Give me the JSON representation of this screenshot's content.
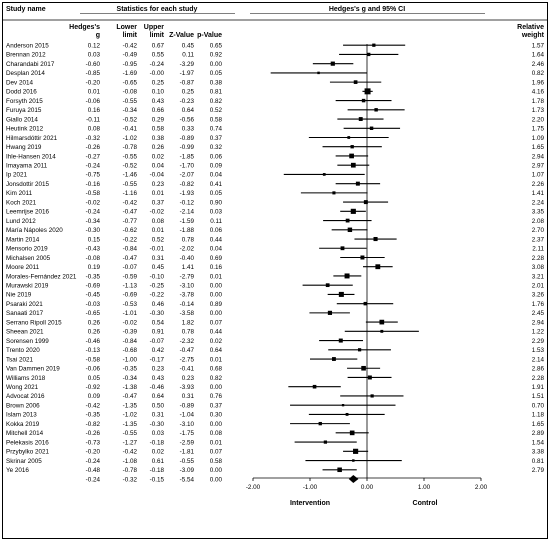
{
  "header": {
    "study_name": "Study name",
    "stats_title": "Statistics for each study",
    "col_g": [
      "Hedges's",
      "g"
    ],
    "col_lower": [
      "Lower",
      "limit"
    ],
    "col_upper": [
      "Upper",
      "limit"
    ],
    "col_z": "Z-Value",
    "col_p": "p-Value",
    "forest_title": "Hedges's g and 95% CI",
    "col_weight": [
      "Relative",
      "weight"
    ]
  },
  "chart_data": {
    "type": "forest",
    "x_ticks": [
      "-2.00",
      "-1.00",
      "0.00",
      "1.00",
      "2.00"
    ],
    "x_tick_values": [
      -2,
      -1,
      0,
      1,
      2
    ],
    "xlim": [
      -2,
      2
    ],
    "xlabel_left": "Intervention",
    "xlabel_right": "Control",
    "studies": [
      {
        "name": "Anderson 2015",
        "g": "0.12",
        "lower": "-0.42",
        "upper": "0.67",
        "z": "0.45",
        "p": "0.65",
        "weight": "1.57"
      },
      {
        "name": "Brennan 2012",
        "g": "0.03",
        "lower": "-0.49",
        "upper": "0.55",
        "z": "0.11",
        "p": "0.92",
        "weight": "1.64"
      },
      {
        "name": "Charandabi 2017",
        "g": "-0.60",
        "lower": "-0.95",
        "upper": "-0.24",
        "z": "-3.29",
        "p": "0.00",
        "weight": "2.46"
      },
      {
        "name": "Desplan 2014",
        "g": "-0.85",
        "lower": "-1.69",
        "upper": "-0.00",
        "z": "-1.97",
        "p": "0.05",
        "weight": "0.82"
      },
      {
        "name": "Dev 2014",
        "g": "-0.20",
        "lower": "-0.65",
        "upper": "0.25",
        "z": "-0.87",
        "p": "0.38",
        "weight": "1.96"
      },
      {
        "name": "Dodd 2016",
        "g": "0.01",
        "lower": "-0.08",
        "upper": "0.10",
        "z": "0.25",
        "p": "0.81",
        "weight": "4.16"
      },
      {
        "name": "Forsyth 2015",
        "g": "-0.06",
        "lower": "-0.55",
        "upper": "0.43",
        "z": "-0.23",
        "p": "0.82",
        "weight": "1.78"
      },
      {
        "name": "Furuya 2015",
        "g": "0.16",
        "lower": "-0.34",
        "upper": "0.66",
        "z": "0.64",
        "p": "0.52",
        "weight": "1.73"
      },
      {
        "name": "Giallo 2014",
        "g": "-0.11",
        "lower": "-0.52",
        "upper": "0.29",
        "z": "-0.56",
        "p": "0.58",
        "weight": "2.20"
      },
      {
        "name": "Heutink 2012",
        "g": "0.08",
        "lower": "-0.41",
        "upper": "0.58",
        "z": "0.33",
        "p": "0.74",
        "weight": "1.75"
      },
      {
        "name": "Hilmarsdóttir 2021",
        "g": "-0.32",
        "lower": "-1.02",
        "upper": "0.38",
        "z": "-0.89",
        "p": "0.37",
        "weight": "1.09"
      },
      {
        "name": "Hwang 2019",
        "g": "-0.26",
        "lower": "-0.78",
        "upper": "0.26",
        "z": "-0.99",
        "p": "0.32",
        "weight": "1.65"
      },
      {
        "name": "Ihle-Hansen 2014",
        "g": "-0.27",
        "lower": "-0.55",
        "upper": "0.02",
        "z": "-1.85",
        "p": "0.06",
        "weight": "2.94"
      },
      {
        "name": "Imayama 2011",
        "g": "-0.24",
        "lower": "-0.52",
        "upper": "0.04",
        "z": "-1.70",
        "p": "0.09",
        "weight": "2.97"
      },
      {
        "name": "Ip 2021",
        "g": "-0.75",
        "lower": "-1.46",
        "upper": "-0.04",
        "z": "-2.07",
        "p": "0.04",
        "weight": "1.07"
      },
      {
        "name": "Jonsdottir 2015",
        "g": "-0.16",
        "lower": "-0.55",
        "upper": "0.23",
        "z": "-0.82",
        "p": "0.41",
        "weight": "2.26"
      },
      {
        "name": "Kim 2011",
        "g": "-0.58",
        "lower": "-1.16",
        "upper": "0.01",
        "z": "-1.93",
        "p": "0.05",
        "weight": "1.41"
      },
      {
        "name": "Koch 2021",
        "g": "-0.02",
        "lower": "-0.42",
        "upper": "0.37",
        "z": "-0.12",
        "p": "0.90",
        "weight": "2.24"
      },
      {
        "name": "Leemrijse 2016",
        "g": "-0.24",
        "lower": "-0.47",
        "upper": "-0.02",
        "z": "-2.14",
        "p": "0.03",
        "weight": "3.35"
      },
      {
        "name": "Lund 2012",
        "g": "-0.34",
        "lower": "-0.77",
        "upper": "0.08",
        "z": "-1.59",
        "p": "0.11",
        "weight": "2.08"
      },
      {
        "name": "María Nápoles 2020",
        "g": "-0.30",
        "lower": "-0.62",
        "upper": "0.01",
        "z": "-1.88",
        "p": "0.06",
        "weight": "2.70"
      },
      {
        "name": "Martin 2014",
        "g": "0.15",
        "lower": "-0.22",
        "upper": "0.52",
        "z": "0.78",
        "p": "0.44",
        "weight": "2.37"
      },
      {
        "name": "Mensorio 2019",
        "g": "-0.43",
        "lower": "-0.84",
        "upper": "-0.01",
        "z": "-2.02",
        "p": "0.04",
        "weight": "2.11"
      },
      {
        "name": "Michalsen 2005",
        "g": "-0.08",
        "lower": "-0.47",
        "upper": "0.31",
        "z": "-0.40",
        "p": "0.69",
        "weight": "2.28"
      },
      {
        "name": "Moore 2011",
        "g": "0.19",
        "lower": "-0.07",
        "upper": "0.45",
        "z": "1.41",
        "p": "0.16",
        "weight": "3.08"
      },
      {
        "name": "Morales-Fernández 2021",
        "g": "-0.35",
        "lower": "-0.59",
        "upper": "-0.10",
        "z": "-2.79",
        "p": "0.01",
        "weight": "3.21"
      },
      {
        "name": "Murawski 2019",
        "g": "-0.69",
        "lower": "-1.13",
        "upper": "-0.25",
        "z": "-3.10",
        "p": "0.00",
        "weight": "2.01"
      },
      {
        "name": "Nie 2019",
        "g": "-0.45",
        "lower": "-0.69",
        "upper": "-0.22",
        "z": "-3.78",
        "p": "0.00",
        "weight": "3.26"
      },
      {
        "name": "Psaraki 2021",
        "g": "-0.03",
        "lower": "-0.53",
        "upper": "0.46",
        "z": "-0.14",
        "p": "0.89",
        "weight": "1.76"
      },
      {
        "name": "Sanaati 2017",
        "g": "-0.65",
        "lower": "-1.01",
        "upper": "-0.30",
        "z": "-3.58",
        "p": "0.00",
        "weight": "2.45"
      },
      {
        "name": "Serrano Ripoll 2015",
        "g": "0.26",
        "lower": "-0.02",
        "upper": "0.54",
        "z": "1.82",
        "p": "0.07",
        "weight": "2.94"
      },
      {
        "name": "Sheean 2021",
        "g": "0.26",
        "lower": "-0.39",
        "upper": "0.91",
        "z": "0.78",
        "p": "0.44",
        "weight": "1.22"
      },
      {
        "name": "Sorensen 1999",
        "g": "-0.46",
        "lower": "-0.84",
        "upper": "-0.07",
        "z": "-2.32",
        "p": "0.02",
        "weight": "2.29"
      },
      {
        "name": "Trento 2020",
        "g": "-0.13",
        "lower": "-0.68",
        "upper": "0.42",
        "z": "-0.47",
        "p": "0.64",
        "weight": "1.53"
      },
      {
        "name": "Tsai 2021",
        "g": "-0.58",
        "lower": "-1.00",
        "upper": "-0.17",
        "z": "-2.75",
        "p": "0.01",
        "weight": "2.14"
      },
      {
        "name": "Van Dammen 2019",
        "g": "-0.06",
        "lower": "-0.35",
        "upper": "0.23",
        "z": "-0.41",
        "p": "0.68",
        "weight": "2.86"
      },
      {
        "name": "Williams 2018",
        "g": "0.05",
        "lower": "-0.34",
        "upper": "0.43",
        "z": "0.23",
        "p": "0.82",
        "weight": "2.28"
      },
      {
        "name": "Wong 2021",
        "g": "-0.92",
        "lower": "-1.38",
        "upper": "-0.46",
        "z": "-3.93",
        "p": "0.00",
        "weight": "1.91"
      },
      {
        "name": "Advocat 2016",
        "g": "0.09",
        "lower": "-0.47",
        "upper": "0.64",
        "z": "0.31",
        "p": "0.76",
        "weight": "1.51"
      },
      {
        "name": "Brown 2006",
        "g": "-0.42",
        "lower": "-1.35",
        "upper": "0.50",
        "z": "-0.89",
        "p": "0.37",
        "weight": "0.70"
      },
      {
        "name": "Islam 2013",
        "g": "-0.35",
        "lower": "-1.02",
        "upper": "0.31",
        "z": "-1.04",
        "p": "0.30",
        "weight": "1.18"
      },
      {
        "name": "Kokka 2019",
        "g": "-0.82",
        "lower": "-1.35",
        "upper": "-0.30",
        "z": "-3.10",
        "p": "0.00",
        "weight": "1.65"
      },
      {
        "name": "Mitchell 2014",
        "g": "-0.26",
        "lower": "-0.55",
        "upper": "0.03",
        "z": "-1.75",
        "p": "0.08",
        "weight": "2.89"
      },
      {
        "name": "Pelekasis 2016",
        "g": "-0.73",
        "lower": "-1.27",
        "upper": "-0.18",
        "z": "-2.59",
        "p": "0.01",
        "weight": "1.54"
      },
      {
        "name": "Przybylko 2021",
        "g": "-0.20",
        "lower": "-0.42",
        "upper": "0.02",
        "z": "-1.81",
        "p": "0.07",
        "weight": "3.38"
      },
      {
        "name": "Skrinar 2005",
        "g": "-0.24",
        "lower": "-1.08",
        "upper": "0.61",
        "z": "-0.55",
        "p": "0.58",
        "weight": "0.81"
      },
      {
        "name": "Ye 2016",
        "g": "-0.48",
        "lower": "-0.78",
        "upper": "-0.18",
        "z": "-3.09",
        "p": "0.00",
        "weight": "2.79"
      }
    ],
    "summary": {
      "g": "-0.24",
      "lower": "-0.32",
      "upper": "-0.15",
      "z": "-5.54",
      "p": "0.00"
    }
  }
}
